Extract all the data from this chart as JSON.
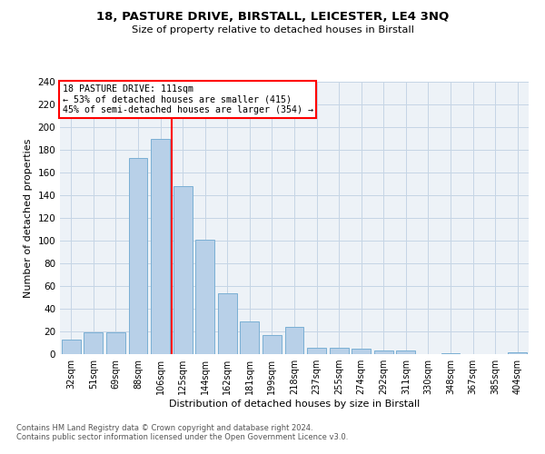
{
  "title1": "18, PASTURE DRIVE, BIRSTALL, LEICESTER, LE4 3NQ",
  "title2": "Size of property relative to detached houses in Birstall",
  "xlabel": "Distribution of detached houses by size in Birstall",
  "ylabel": "Number of detached properties",
  "categories": [
    "32sqm",
    "51sqm",
    "69sqm",
    "88sqm",
    "106sqm",
    "125sqm",
    "144sqm",
    "162sqm",
    "181sqm",
    "199sqm",
    "218sqm",
    "237sqm",
    "255sqm",
    "274sqm",
    "292sqm",
    "311sqm",
    "330sqm",
    "348sqm",
    "367sqm",
    "385sqm",
    "404sqm"
  ],
  "values": [
    13,
    19,
    19,
    173,
    190,
    148,
    101,
    54,
    29,
    17,
    24,
    6,
    6,
    5,
    3,
    3,
    0,
    1,
    0,
    0,
    2
  ],
  "bar_color": "#b8d0e8",
  "bar_edge_color": "#7aafd4",
  "vline_x": 4.5,
  "vline_color": "red",
  "annotation_title": "18 PASTURE DRIVE: 111sqm",
  "annotation_line1": "← 53% of detached houses are smaller (415)",
  "annotation_line2": "45% of semi-detached houses are larger (354) →",
  "ylim": [
    0,
    240
  ],
  "yticks": [
    0,
    20,
    40,
    60,
    80,
    100,
    120,
    140,
    160,
    180,
    200,
    220,
    240
  ],
  "footer1": "Contains HM Land Registry data © Crown copyright and database right 2024.",
  "footer2": "Contains public sector information licensed under the Open Government Licence v3.0.",
  "bg_color": "#edf2f7",
  "grid_color": "#c5d5e5"
}
